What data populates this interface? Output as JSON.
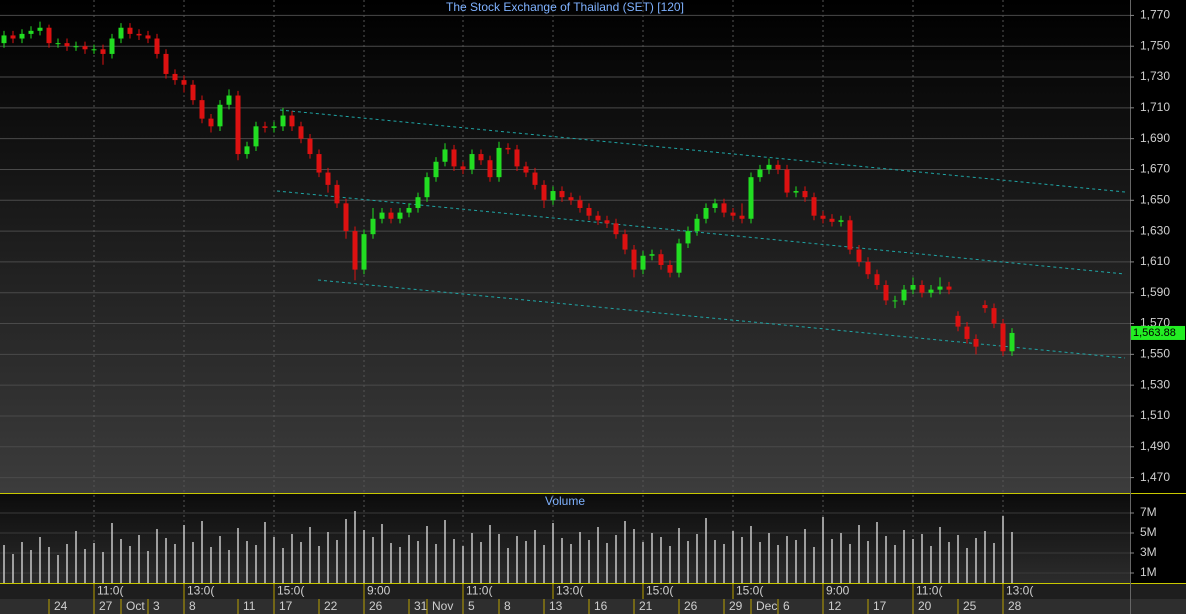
{
  "chart_data": {
    "type": "candlestick",
    "title": "The Stock Exchange of Thailand (SET) [120]",
    "volume_title": "Volume",
    "last_value_label": "1,563.88",
    "up_color": "#22dd22",
    "down_color": "#dd1111",
    "volume_color": "#c8c8c8",
    "last_color": "#22ee22",
    "grid": true,
    "categories": [
      null,
      null,
      null,
      null,
      null,
      "24",
      null,
      null,
      null,
      null,
      "27",
      null,
      null,
      "Oct",
      null,
      null,
      "3",
      null,
      null,
      null,
      "8",
      null,
      null,
      null,
      null,
      null,
      "11",
      null,
      null,
      null,
      "17",
      null,
      null,
      null,
      null,
      "22",
      null,
      null,
      null,
      null,
      "26",
      null,
      null,
      null,
      null,
      "31",
      null,
      "Nov",
      null,
      null,
      null,
      "5",
      null,
      null,
      null,
      "8",
      null,
      null,
      null,
      null,
      "13",
      null,
      null,
      null,
      null,
      "16",
      null,
      null,
      null,
      null,
      "21",
      null,
      null,
      null,
      null,
      "26",
      null,
      null,
      null,
      null,
      "29",
      null,
      null,
      "Dec",
      null,
      null,
      "6",
      null,
      null,
      null,
      null,
      "12",
      null,
      null,
      null,
      null,
      "17",
      null,
      null,
      null,
      null,
      "20",
      null,
      null,
      null,
      null,
      "25",
      null,
      null,
      null,
      null,
      "28",
      null
    ],
    "time_labels": [
      null,
      null,
      null,
      null,
      null,
      null,
      null,
      null,
      null,
      null,
      "11:0(",
      null,
      null,
      null,
      null,
      null,
      null,
      null,
      null,
      null,
      "13:0(",
      null,
      null,
      null,
      null,
      null,
      null,
      null,
      null,
      null,
      "15:0(",
      null,
      null,
      null,
      null,
      null,
      null,
      null,
      null,
      null,
      "9:00",
      null,
      null,
      null,
      null,
      null,
      null,
      null,
      null,
      null,
      null,
      "11:0(",
      null,
      null,
      null,
      null,
      null,
      null,
      null,
      null,
      null,
      "13:0(",
      null,
      null,
      null,
      null,
      null,
      null,
      null,
      null,
      null,
      "15:0(",
      null,
      null,
      null,
      null,
      null,
      null,
      null,
      null,
      null,
      "15:0(",
      null,
      null,
      null,
      null,
      null,
      null,
      null,
      null,
      null,
      "9:00",
      null,
      null,
      null,
      null,
      null,
      null,
      null,
      null,
      null,
      "11:0(",
      null,
      null,
      null,
      null,
      null,
      null,
      null,
      null,
      null,
      "13:0(",
      null
    ],
    "open": [
      1752,
      1757,
      1755,
      1758,
      1760,
      1762,
      1752,
      1752,
      1750,
      1750,
      1748,
      1748,
      1745,
      1755,
      1762,
      1758,
      1757,
      1755,
      1745,
      1732,
      1728,
      1725,
      1715,
      1703,
      1698,
      1712,
      1718,
      1680,
      1685,
      1698,
      1697,
      1698,
      1705,
      1698,
      1690,
      1680,
      1668,
      1660,
      1648,
      1630,
      1605,
      1628,
      1638,
      1642,
      1638,
      1642,
      1645,
      1652,
      1665,
      1675,
      1683,
      1672,
      1670,
      1680,
      1676,
      1665,
      1684,
      1683,
      1672,
      1668,
      1660,
      1650,
      1656,
      1652,
      1650,
      1645,
      1640,
      1637,
      1635,
      1628,
      1618,
      1605,
      1614,
      1615,
      1608,
      1603,
      1622,
      1630,
      1638,
      1645,
      1648,
      1642,
      1640,
      1638,
      1665,
      1670,
      1673,
      1670,
      1655,
      1656,
      1652,
      1640,
      1638,
      1636,
      1637,
      1618,
      1610,
      1602,
      1595,
      1585,
      1585,
      1592,
      1595,
      1590,
      1592,
      1594,
      1575,
      1568,
      1560,
      1582,
      1580,
      1570,
      1552
    ],
    "high": [
      1760,
      1760,
      1761,
      1763,
      1766,
      1764,
      1755,
      1755,
      1753,
      1753,
      1751,
      1751,
      1758,
      1765,
      1765,
      1761,
      1760,
      1758,
      1748,
      1735,
      1731,
      1728,
      1718,
      1706,
      1715,
      1722,
      1721,
      1688,
      1701,
      1701,
      1701,
      1710,
      1708,
      1701,
      1693,
      1683,
      1671,
      1663,
      1651,
      1633,
      1631,
      1645,
      1645,
      1645,
      1645,
      1648,
      1655,
      1668,
      1678,
      1687,
      1686,
      1675,
      1683,
      1683,
      1679,
      1688,
      1687,
      1686,
      1675,
      1671,
      1663,
      1659,
      1659,
      1655,
      1653,
      1648,
      1643,
      1640,
      1638,
      1631,
      1621,
      1617,
      1618,
      1618,
      1611,
      1625,
      1633,
      1641,
      1648,
      1651,
      1651,
      1645,
      1648,
      1668,
      1673,
      1677,
      1676,
      1673,
      1659,
      1659,
      1655,
      1643,
      1641,
      1640,
      1640,
      1621,
      1613,
      1605,
      1598,
      1588,
      1595,
      1600,
      1598,
      1595,
      1600,
      1597,
      1578,
      1571,
      1563,
      1585,
      1583,
      1573,
      1567
    ],
    "low": [
      1749,
      1752,
      1752,
      1755,
      1757,
      1749,
      1749,
      1747,
      1747,
      1745,
      1745,
      1738,
      1742,
      1752,
      1755,
      1754,
      1752,
      1742,
      1729,
      1725,
      1720,
      1712,
      1700,
      1694,
      1695,
      1709,
      1676,
      1677,
      1682,
      1694,
      1694,
      1695,
      1695,
      1687,
      1677,
      1665,
      1655,
      1645,
      1625,
      1598,
      1602,
      1625,
      1635,
      1635,
      1635,
      1639,
      1642,
      1649,
      1662,
      1672,
      1669,
      1667,
      1667,
      1673,
      1662,
      1662,
      1680,
      1669,
      1665,
      1657,
      1645,
      1647,
      1649,
      1647,
      1642,
      1637,
      1634,
      1632,
      1625,
      1615,
      1600,
      1602,
      1611,
      1605,
      1600,
      1600,
      1619,
      1627,
      1635,
      1642,
      1639,
      1637,
      1635,
      1635,
      1662,
      1667,
      1667,
      1652,
      1652,
      1649,
      1637,
      1635,
      1633,
      1633,
      1615,
      1607,
      1599,
      1592,
      1582,
      1580,
      1582,
      1589,
      1587,
      1587,
      1589,
      1589,
      1565,
      1557,
      1550,
      1577,
      1567,
      1549,
      1549
    ],
    "close": [
      1757,
      1755,
      1758,
      1760,
      1762,
      1752,
      1752,
      1750,
      1750,
      1748,
      1748,
      1745,
      1755,
      1762,
      1758,
      1757,
      1755,
      1745,
      1732,
      1728,
      1725,
      1715,
      1703,
      1698,
      1712,
      1718,
      1680,
      1685,
      1698,
      1697,
      1698,
      1705,
      1698,
      1690,
      1680,
      1668,
      1660,
      1648,
      1630,
      1605,
      1628,
      1638,
      1642,
      1638,
      1642,
      1645,
      1652,
      1665,
      1675,
      1683,
      1672,
      1670,
      1680,
      1676,
      1665,
      1684,
      1683,
      1672,
      1668,
      1660,
      1650,
      1656,
      1652,
      1650,
      1645,
      1640,
      1637,
      1635,
      1628,
      1618,
      1605,
      1614,
      1615,
      1608,
      1603,
      1622,
      1630,
      1638,
      1645,
      1648,
      1642,
      1640,
      1638,
      1665,
      1670,
      1673,
      1670,
      1655,
      1656,
      1652,
      1640,
      1638,
      1636,
      1637,
      1618,
      1610,
      1602,
      1595,
      1585,
      1585,
      1592,
      1595,
      1590,
      1592,
      1594,
      1592,
      1568,
      1560,
      1555,
      1580,
      1570,
      1552,
      1563.88
    ],
    "volume": [
      3800000,
      2900000,
      4100000,
      3300000,
      4600000,
      3600000,
      2800000,
      3900000,
      5200000,
      3400000,
      4000000,
      3100000,
      6000000,
      4400000,
      3700000,
      4800000,
      3200000,
      5400000,
      4500000,
      3900000,
      5800000,
      4100000,
      6200000,
      3600000,
      4700000,
      3300000,
      5500000,
      4200000,
      3800000,
      6100000,
      4600000,
      3500000,
      4900000,
      4100000,
      5600000,
      3700000,
      5100000,
      4300000,
      6400000,
      7200000,
      5300000,
      4600000,
      5900000,
      4000000,
      3600000,
      4800000,
      4200000,
      5700000,
      3900000,
      6300000,
      4400000,
      3700000,
      5000000,
      4100000,
      5800000,
      4900000,
      3500000,
      4700000,
      4200000,
      5300000,
      3800000,
      6000000,
      4500000,
      3900000,
      5100000,
      4300000,
      5600000,
      4000000,
      4800000,
      6200000,
      5400000,
      4100000,
      5000000,
      4600000,
      3700000,
      5500000,
      4200000,
      4900000,
      6500000,
      4300000,
      3900000,
      5200000,
      4600000,
      5700000,
      4100000,
      5000000,
      3800000,
      4700000,
      4300000,
      5400000,
      3600000,
      6600000,
      4400000,
      5000000,
      3900000,
      5800000,
      4200000,
      6100000,
      4700000,
      3800000,
      5300000,
      4400000,
      4900000,
      3700000,
      5600000,
      4100000,
      4800000,
      3500000,
      4500000,
      5200000,
      4000000,
      6700000,
      5100000
    ],
    "ylim": [
      1460,
      1780
    ],
    "yticks": [
      {
        "value": 1470,
        "label": "1,470"
      },
      {
        "value": 1490,
        "label": "1,490"
      },
      {
        "value": 1510,
        "label": "1,510"
      },
      {
        "value": 1530,
        "label": "1,530"
      },
      {
        "value": 1550,
        "label": "1,550"
      },
      {
        "value": 1570,
        "label": "1,570"
      },
      {
        "value": 1590,
        "label": "1,590"
      },
      {
        "value": 1610,
        "label": "1,610"
      },
      {
        "value": 1630,
        "label": "1,630"
      },
      {
        "value": 1650,
        "label": "1,650"
      },
      {
        "value": 1670,
        "label": "1,670"
      },
      {
        "value": 1690,
        "label": "1,690"
      },
      {
        "value": 1710,
        "label": "1,710"
      },
      {
        "value": 1730,
        "label": "1,730"
      },
      {
        "value": 1750,
        "label": "1,750"
      },
      {
        "value": 1770,
        "label": "1,770"
      }
    ],
    "y2lim": [
      0,
      8700000
    ],
    "y2ticks": [
      {
        "value": 1000000,
        "label": "1M"
      },
      {
        "value": 3000000,
        "label": "3M"
      },
      {
        "value": 5000000,
        "label": "5M"
      },
      {
        "value": 7000000,
        "label": "7M"
      }
    ]
  }
}
